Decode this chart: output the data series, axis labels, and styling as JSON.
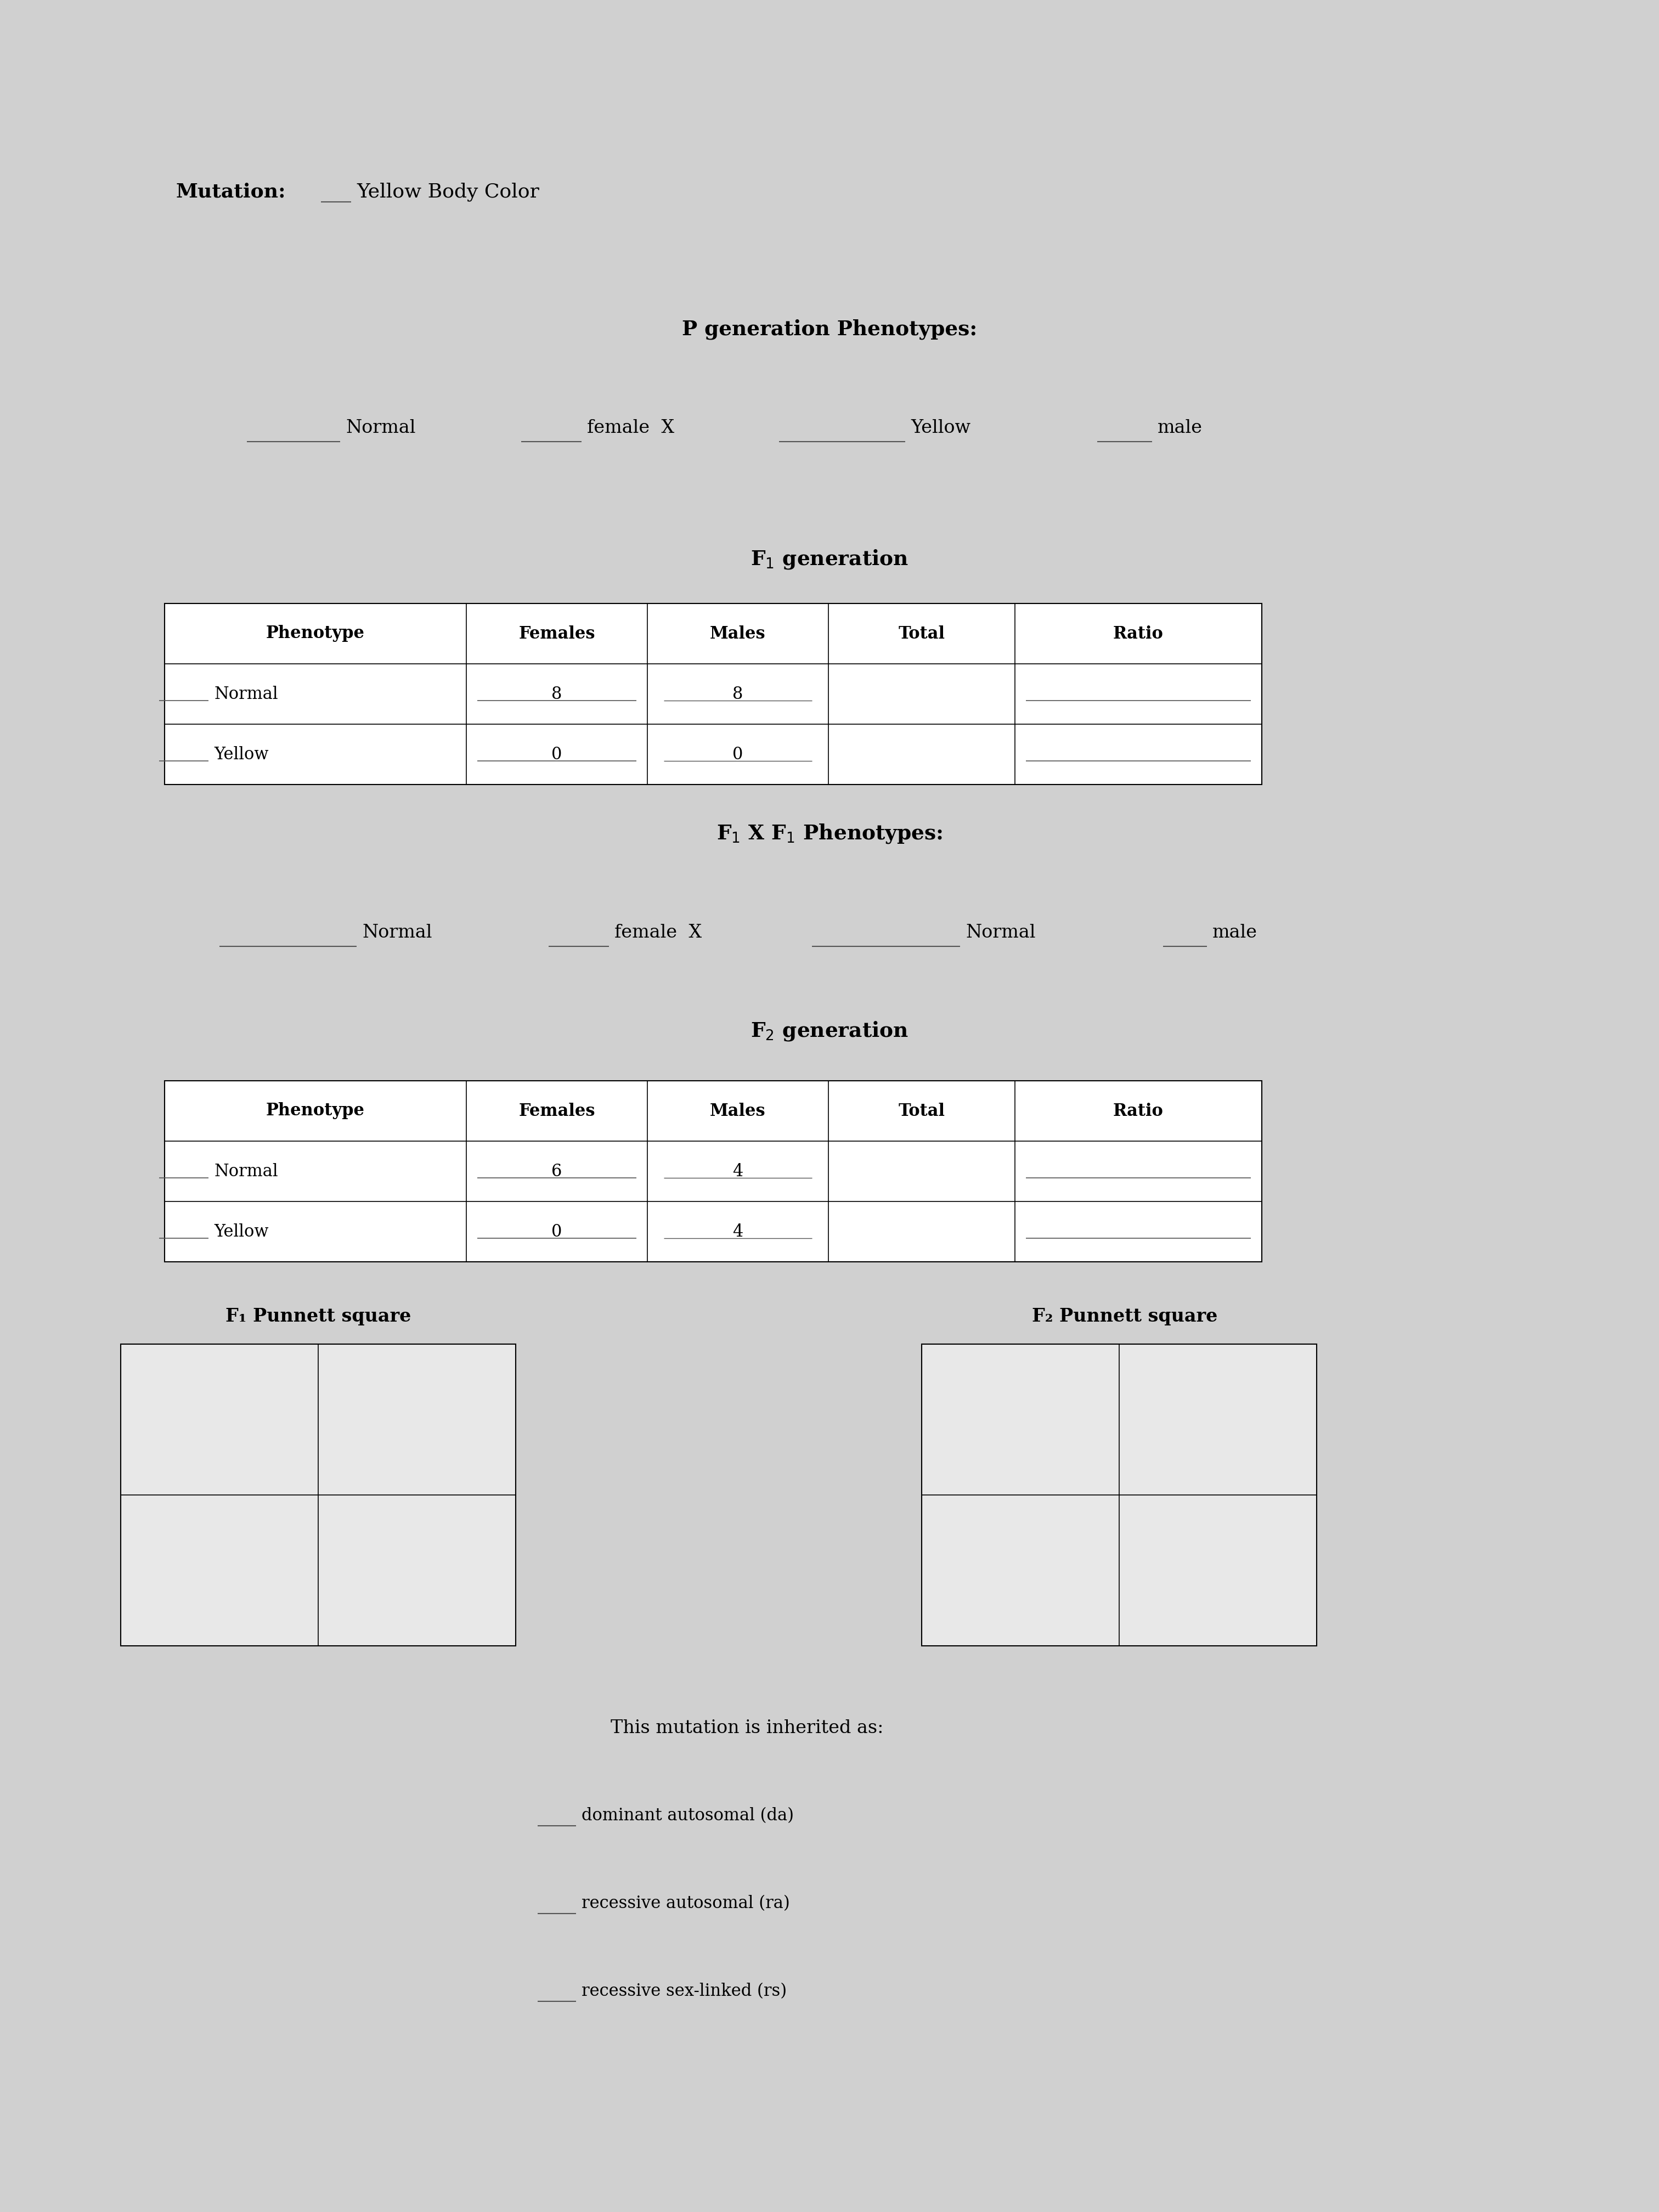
{
  "bg_color": "#d0d0d0",
  "title_mutation": "Mutation:",
  "mutation_name": "Yellow Body Color",
  "p_gen_title": "P generation Phenotypes:",
  "p_gen_line": "_____ Normal     _____ female  X     _________ Yellow     _____ male",
  "f1_gen_title": "F₁ generation",
  "f1_table_headers": [
    "Phenotype",
    "Females",
    "Males",
    "Total",
    "Ratio"
  ],
  "f1_rows": [
    [
      "Normal",
      "8",
      "8",
      "",
      ""
    ],
    [
      "Yellow",
      "0",
      "0",
      "",
      ""
    ]
  ],
  "f1xf1_title": "F₁ X F₁ Phenotypes:",
  "f1xf1_line": "_____ Normal     _____ female  X     _________ Normal     _____ male",
  "f2_gen_title": "F₂ generation",
  "f2_table_headers": [
    "Phenotype",
    "Females",
    "Males",
    "Total",
    "Ratio"
  ],
  "f2_rows": [
    [
      "Normal",
      "6",
      "4",
      "",
      ""
    ],
    [
      "Yellow",
      "0",
      "4",
      "",
      ""
    ]
  ],
  "f1_punnett_label": "F₁ Punnett square",
  "f2_punnett_label": "F₂ Punnett square",
  "inheritance_title": "This mutation is inherited as:",
  "inheritance_options": [
    "dominant autosomal (da)",
    "recessive autosomal (ra)",
    "recessive sex-linked (rs)"
  ]
}
